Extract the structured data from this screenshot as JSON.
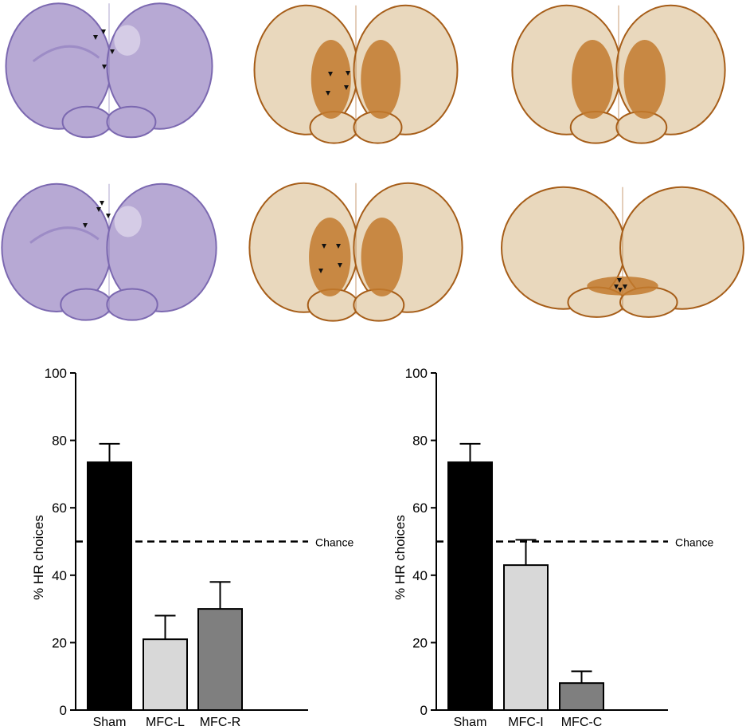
{
  "histology": {
    "panels": [
      {
        "stain": "nissl",
        "arrowheads": 4
      },
      {
        "stain": "dab",
        "arrowheads": 4
      },
      {
        "stain": "dab",
        "arrowheads": 0
      },
      {
        "stain": "nissl",
        "arrowheads": 4
      },
      {
        "stain": "dab",
        "arrowheads": 4
      },
      {
        "stain": "dab",
        "arrowheads": 4
      }
    ],
    "colors": {
      "nissl_fill": "#b7a9d4",
      "nissl_edge": "#7b68b0",
      "dab_fill": "#e9d8bd",
      "dab_stain": "#c27a2e",
      "dab_edge": "#a65d18"
    }
  },
  "chart_data": [
    {
      "type": "bar",
      "categories": [
        "Sham",
        "MFC-L",
        "MFC-R"
      ],
      "values": [
        73.5,
        21,
        30
      ],
      "errors": [
        5.5,
        7,
        8
      ],
      "colors": [
        "#000000",
        "#d8d8d8",
        "#7f7f7f"
      ],
      "ylabel": "% HR choices",
      "ylim": [
        0,
        100
      ],
      "yticks": [
        "0",
        "20",
        "40",
        "60",
        "80",
        "100"
      ],
      "reference_line": {
        "value": 50,
        "label": "Chance",
        "style": "dashed"
      }
    },
    {
      "type": "bar",
      "categories": [
        "Sham",
        "MFC-I",
        "MFC-C"
      ],
      "values": [
        73.5,
        43,
        8
      ],
      "errors": [
        5.5,
        7.5,
        3.5
      ],
      "colors": [
        "#000000",
        "#d8d8d8",
        "#7f7f7f"
      ],
      "ylabel": "% HR choices",
      "ylim": [
        0,
        100
      ],
      "yticks": [
        "0",
        "20",
        "40",
        "60",
        "80",
        "100"
      ],
      "reference_line": {
        "value": 50,
        "label": "Chance",
        "style": "dashed"
      }
    }
  ]
}
